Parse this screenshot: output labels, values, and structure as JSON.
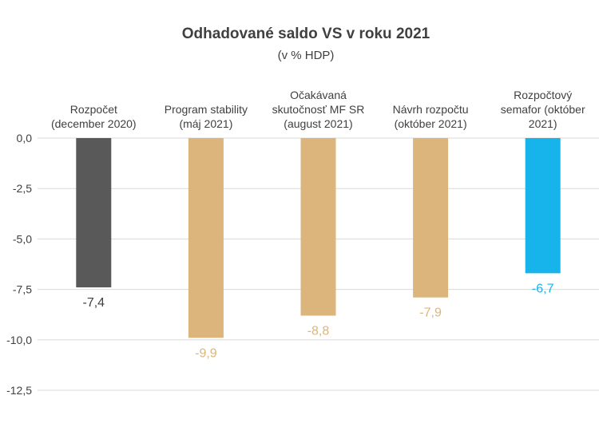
{
  "chart_data": {
    "type": "bar",
    "title": "Odhadované saldo VS v roku 2021",
    "subtitle": "(v % HDP)",
    "categories": [
      [
        "Rozpočet",
        "(december 2020)"
      ],
      [
        "Program stability",
        "(máj 2021)"
      ],
      [
        "Očakávaná",
        "skutočnosť MF SR",
        "(august 2021)"
      ],
      [
        "Návrh rozpočtu",
        "(október 2021)"
      ],
      [
        "Rozpočtový",
        "semafor (október",
        "2021)"
      ]
    ],
    "values": [
      -7.4,
      -9.9,
      -8.8,
      -7.9,
      -6.7
    ],
    "value_labels": [
      "-7,4",
      "-9,9",
      "-8,8",
      "-7,9",
      "-6,7"
    ],
    "colors": [
      "#595959",
      "#dcb57c",
      "#dcb57c",
      "#dcb57c",
      "#16b4ea"
    ],
    "label_colors": [
      "#404040",
      "#dcb57c",
      "#dcb57c",
      "#dcb57c",
      "#16b4ea"
    ],
    "ylim": [
      -12.5,
      0
    ],
    "yticks": [
      0,
      -2.5,
      -5,
      -7.5,
      -10,
      -12.5
    ],
    "ytick_labels": [
      "0,0",
      "-2,5",
      "-5,0",
      "-7,5",
      "-10,0",
      "-12,5"
    ],
    "grid": true,
    "legend": "none"
  }
}
